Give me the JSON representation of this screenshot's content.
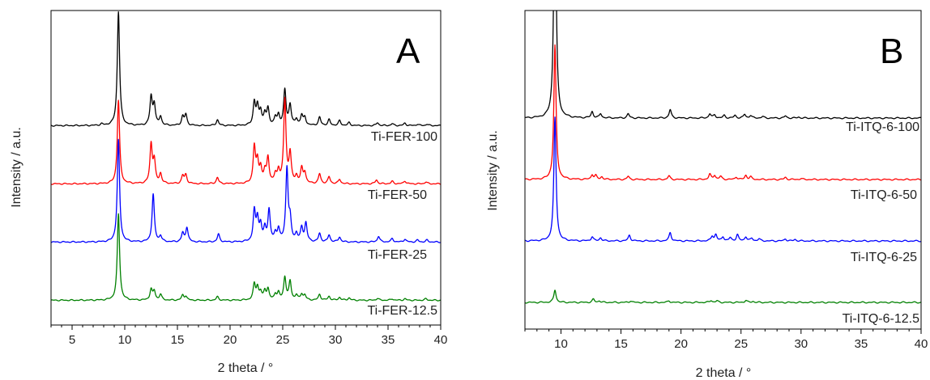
{
  "chart_data": [
    {
      "type": "line",
      "panel_letter": "A",
      "xlabel": "2 theta / °",
      "ylabel": "Intensity / a.u.",
      "xlim": [
        3,
        40
      ],
      "x_ticks": [
        5,
        10,
        15,
        20,
        25,
        30,
        35,
        40
      ],
      "y_ticks_labeled": false,
      "legend": "none; series labels at right end of each trace",
      "series": [
        {
          "name": "Ti-FER-100",
          "color": "#000000",
          "offset": 3.0,
          "baseline": 0.01,
          "peaks": [
            [
              7.8,
              0.03
            ],
            [
              9.4,
              2.35
            ],
            [
              12.5,
              0.58
            ],
            [
              12.8,
              0.42
            ],
            [
              13.4,
              0.18
            ],
            [
              15.5,
              0.18
            ],
            [
              15.8,
              0.22
            ],
            [
              18.8,
              0.12
            ],
            [
              22.3,
              0.47
            ],
            [
              22.6,
              0.36
            ],
            [
              22.9,
              0.28
            ],
            [
              23.3,
              0.22
            ],
            [
              23.6,
              0.33
            ],
            [
              24.3,
              0.15
            ],
            [
              24.6,
              0.2
            ],
            [
              25.2,
              0.72
            ],
            [
              25.7,
              0.42
            ],
            [
              26.3,
              0.12
            ],
            [
              26.8,
              0.2
            ],
            [
              27.1,
              0.16
            ],
            [
              28.5,
              0.17
            ],
            [
              29.4,
              0.12
            ],
            [
              30.4,
              0.1
            ],
            [
              31.3,
              0.06
            ],
            [
              34.0,
              0.06
            ],
            [
              35.4,
              0.04
            ],
            [
              36.6,
              0.05
            ],
            [
              37.8,
              0.03
            ],
            [
              38.7,
              0.03
            ]
          ]
        },
        {
          "name": "Ti-FER-50",
          "color": "#ff0000",
          "offset": 2.0,
          "baseline": 0.01,
          "peaks": [
            [
              9.4,
              1.72
            ],
            [
              12.5,
              0.8
            ],
            [
              12.8,
              0.45
            ],
            [
              13.4,
              0.2
            ],
            [
              15.5,
              0.16
            ],
            [
              15.8,
              0.18
            ],
            [
              18.8,
              0.13
            ],
            [
              22.3,
              0.75
            ],
            [
              22.6,
              0.42
            ],
            [
              22.9,
              0.3
            ],
            [
              23.3,
              0.22
            ],
            [
              23.6,
              0.52
            ],
            [
              24.3,
              0.16
            ],
            [
              24.6,
              0.25
            ],
            [
              25.2,
              1.72
            ],
            [
              25.7,
              0.6
            ],
            [
              26.3,
              0.14
            ],
            [
              26.8,
              0.3
            ],
            [
              27.1,
              0.22
            ],
            [
              28.5,
              0.2
            ],
            [
              29.4,
              0.14
            ],
            [
              30.4,
              0.09
            ],
            [
              33.9,
              0.08
            ],
            [
              35.4,
              0.05
            ],
            [
              36.6,
              0.06
            ],
            [
              38.6,
              0.04
            ]
          ]
        },
        {
          "name": "Ti-FER-25",
          "color": "#0000ff",
          "offset": 1.0,
          "baseline": 0.01,
          "peaks": [
            [
              9.4,
              2.1
            ],
            [
              12.7,
              0.98
            ],
            [
              13.4,
              0.12
            ],
            [
              15.5,
              0.18
            ],
            [
              15.9,
              0.3
            ],
            [
              18.9,
              0.16
            ],
            [
              22.3,
              0.62
            ],
            [
              22.6,
              0.45
            ],
            [
              22.9,
              0.32
            ],
            [
              23.3,
              0.25
            ],
            [
              23.7,
              0.65
            ],
            [
              24.3,
              0.15
            ],
            [
              24.6,
              0.25
            ],
            [
              25.4,
              1.5
            ],
            [
              25.7,
              0.4
            ],
            [
              26.3,
              0.15
            ],
            [
              26.8,
              0.28
            ],
            [
              27.2,
              0.38
            ],
            [
              28.5,
              0.17
            ],
            [
              29.4,
              0.14
            ],
            [
              30.4,
              0.1
            ],
            [
              34.1,
              0.12
            ],
            [
              35.4,
              0.07
            ],
            [
              36.6,
              0.06
            ],
            [
              37.8,
              0.04
            ],
            [
              38.7,
              0.04
            ]
          ]
        },
        {
          "name": "Ti-FER-12.5",
          "color": "#008000",
          "offset": 0.0,
          "baseline": 0.01,
          "peaks": [
            [
              9.4,
              1.78
            ],
            [
              12.5,
              0.22
            ],
            [
              12.8,
              0.18
            ],
            [
              13.4,
              0.12
            ],
            [
              15.5,
              0.1
            ],
            [
              15.8,
              0.08
            ],
            [
              18.8,
              0.07
            ],
            [
              22.3,
              0.32
            ],
            [
              22.6,
              0.25
            ],
            [
              22.9,
              0.15
            ],
            [
              23.3,
              0.18
            ],
            [
              23.6,
              0.22
            ],
            [
              24.3,
              0.12
            ],
            [
              24.6,
              0.14
            ],
            [
              25.2,
              0.47
            ],
            [
              25.7,
              0.38
            ],
            [
              26.3,
              0.1
            ],
            [
              26.8,
              0.12
            ],
            [
              27.1,
              0.1
            ],
            [
              28.5,
              0.12
            ],
            [
              29.4,
              0.08
            ],
            [
              30.4,
              0.06
            ],
            [
              31.3,
              0.05
            ],
            [
              34.0,
              0.04
            ],
            [
              35.4,
              0.03
            ],
            [
              36.6,
              0.03
            ],
            [
              38.6,
              0.03
            ]
          ]
        }
      ]
    },
    {
      "type": "line",
      "panel_letter": "B",
      "xlabel": "2 theta / °",
      "ylabel": "Intensity / a.u.",
      "xlim": [
        7,
        40
      ],
      "x_ticks": [
        10,
        15,
        20,
        25,
        30,
        35,
        40
      ],
      "y_ticks_labeled": false,
      "legend": "none; series labels at right end of each trace",
      "series": [
        {
          "name": "Ti-ITQ-6-100",
          "color": "#000000",
          "offset": 3.0,
          "baseline": 0.03,
          "peaks": [
            [
              9.5,
              5.0
            ],
            [
              12.6,
              0.12
            ],
            [
              13.3,
              0.08
            ],
            [
              15.6,
              0.08
            ],
            [
              19.1,
              0.16
            ],
            [
              22.4,
              0.08
            ],
            [
              22.8,
              0.06
            ],
            [
              23.6,
              0.05
            ],
            [
              24.5,
              0.05
            ],
            [
              25.3,
              0.07
            ],
            [
              25.8,
              0.05
            ],
            [
              26.8,
              0.03
            ],
            [
              28.7,
              0.04
            ],
            [
              29.8,
              0.02
            ]
          ]
        },
        {
          "name": "Ti-ITQ-6-50",
          "color": "#ff0000",
          "offset": 2.0,
          "baseline": 0.03,
          "peaks": [
            [
              9.5,
              2.55
            ],
            [
              12.6,
              0.09
            ],
            [
              12.9,
              0.07
            ],
            [
              13.4,
              0.05
            ],
            [
              15.6,
              0.06
            ],
            [
              19.0,
              0.07
            ],
            [
              22.4,
              0.1
            ],
            [
              22.8,
              0.08
            ],
            [
              23.3,
              0.06
            ],
            [
              24.6,
              0.05
            ],
            [
              25.4,
              0.08
            ],
            [
              25.8,
              0.05
            ],
            [
              28.7,
              0.04
            ],
            [
              30.0,
              0.02
            ]
          ]
        },
        {
          "name": "Ti-ITQ-6-25",
          "color": "#0000ff",
          "offset": 1.0,
          "baseline": 0.03,
          "peaks": [
            [
              9.5,
              2.35
            ],
            [
              12.6,
              0.08
            ],
            [
              13.3,
              0.06
            ],
            [
              15.7,
              0.11
            ],
            [
              19.1,
              0.16
            ],
            [
              22.6,
              0.09
            ],
            [
              22.9,
              0.12
            ],
            [
              23.5,
              0.08
            ],
            [
              24.1,
              0.06
            ],
            [
              24.7,
              0.12
            ],
            [
              25.4,
              0.08
            ],
            [
              25.9,
              0.05
            ],
            [
              26.5,
              0.04
            ],
            [
              28.7,
              0.04
            ],
            [
              29.5,
              0.03
            ]
          ]
        },
        {
          "name": "Ti-ITQ-6-12.5",
          "color": "#008000",
          "offset": 0.0,
          "baseline": 0.03,
          "peaks": [
            [
              9.5,
              0.24
            ],
            [
              12.7,
              0.06
            ],
            [
              13.2,
              0.03
            ],
            [
              15.8,
              0.03
            ],
            [
              19.0,
              0.03
            ],
            [
              22.5,
              0.04
            ],
            [
              23.0,
              0.03
            ],
            [
              25.4,
              0.04
            ],
            [
              26.0,
              0.02
            ]
          ]
        }
      ]
    }
  ]
}
